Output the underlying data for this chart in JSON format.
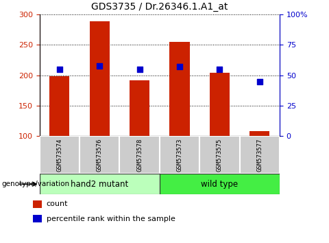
{
  "title": "GDS3735 / Dr.26346.1.A1_at",
  "samples": [
    "GSM573574",
    "GSM573576",
    "GSM573578",
    "GSM573573",
    "GSM573575",
    "GSM573577"
  ],
  "count_values": [
    199,
    289,
    192,
    255,
    204,
    108
  ],
  "percentile_values": [
    55,
    58,
    55,
    57,
    55,
    45
  ],
  "ylim_left": [
    100,
    300
  ],
  "ylim_right": [
    0,
    100
  ],
  "yticks_left": [
    100,
    150,
    200,
    250,
    300
  ],
  "yticks_right": [
    0,
    25,
    50,
    75,
    100
  ],
  "ytick_labels_right": [
    "0",
    "25",
    "50",
    "75",
    "100%"
  ],
  "bar_color": "#cc2200",
  "dot_color": "#0000cc",
  "grid_color": "#000000",
  "title_fontsize": 10,
  "groups": [
    {
      "label": "hand2 mutant",
      "indices": [
        0,
        1,
        2
      ],
      "color": "#bbffbb"
    },
    {
      "label": "wild type",
      "indices": [
        3,
        4,
        5
      ],
      "color": "#44ee44"
    }
  ],
  "group_label": "genotype/variation",
  "legend_count": "count",
  "legend_percentile": "percentile rank within the sample",
  "bar_width": 0.5,
  "base_value": 100
}
